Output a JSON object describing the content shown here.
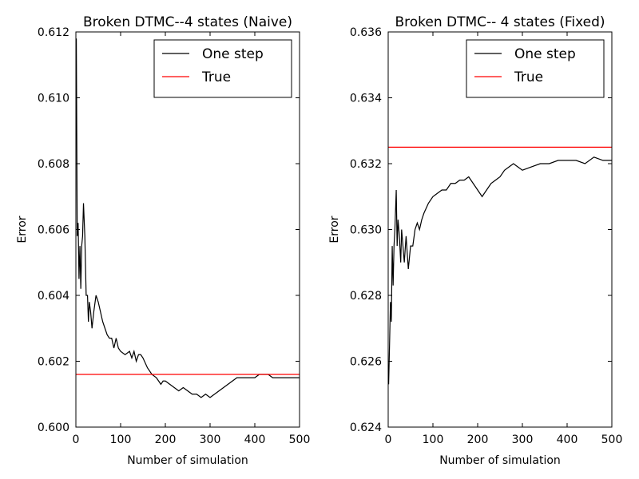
{
  "chart_data": [
    {
      "type": "line",
      "title": "Broken DTMC--4 states (Naive)",
      "xlabel": "Number of simulation",
      "ylabel": "Error",
      "xlim": [
        0,
        500
      ],
      "ylim": [
        0.6,
        0.612
      ],
      "xticks": [
        0,
        100,
        200,
        300,
        400,
        500
      ],
      "xtick_labels": [
        "0",
        "100",
        "200",
        "300",
        "400",
        "500"
      ],
      "yticks": [
        0.6,
        0.602,
        0.604,
        0.606,
        0.608,
        0.61,
        0.612
      ],
      "ytick_labels": [
        "0.600",
        "0.602",
        "0.604",
        "0.606",
        "0.608",
        "0.610",
        "0.612"
      ],
      "legend": "top-right",
      "grid": false,
      "series": [
        {
          "name": "One step",
          "color": "#000000",
          "x": [
            1,
            3,
            5,
            7,
            9,
            11,
            13,
            15,
            17,
            20,
            23,
            26,
            28,
            30,
            33,
            36,
            40,
            45,
            50,
            55,
            60,
            65,
            70,
            75,
            80,
            85,
            90,
            95,
            100,
            110,
            120,
            125,
            130,
            135,
            140,
            145,
            150,
            160,
            170,
            180,
            185,
            190,
            195,
            200,
            210,
            220,
            230,
            240,
            250,
            260,
            270,
            280,
            290,
            300,
            310,
            320,
            330,
            340,
            350,
            360,
            370,
            380,
            390,
            400,
            410,
            420,
            430,
            440,
            450,
            460,
            470,
            480,
            490,
            500
          ],
          "y": [
            0.6118,
            0.6058,
            0.6062,
            0.6045,
            0.6055,
            0.6042,
            0.6055,
            0.6058,
            0.6068,
            0.6058,
            0.604,
            0.604,
            0.6032,
            0.6038,
            0.6035,
            0.603,
            0.6035,
            0.604,
            0.6038,
            0.6035,
            0.6032,
            0.603,
            0.6028,
            0.6027,
            0.6027,
            0.6024,
            0.6027,
            0.6024,
            0.6023,
            0.6022,
            0.6023,
            0.6021,
            0.6023,
            0.602,
            0.6022,
            0.6022,
            0.6021,
            0.6018,
            0.6016,
            0.6015,
            0.6014,
            0.6013,
            0.6014,
            0.6014,
            0.6013,
            0.6012,
            0.6011,
            0.6012,
            0.6011,
            0.601,
            0.601,
            0.6009,
            0.601,
            0.6009,
            0.601,
            0.6011,
            0.6012,
            0.6013,
            0.6014,
            0.6015,
            0.6015,
            0.6015,
            0.6015,
            0.6015,
            0.6016,
            0.6016,
            0.6016,
            0.6015,
            0.6015,
            0.6015,
            0.6015,
            0.6015,
            0.6015,
            0.6015
          ]
        },
        {
          "name": "True",
          "color": "#ff0000",
          "x": [
            0,
            500
          ],
          "y": [
            0.6016,
            0.6016
          ]
        }
      ]
    },
    {
      "type": "line",
      "title": "Broken DTMC-- 4 states (Fixed)",
      "xlabel": "Number of simulation",
      "ylabel": "Error",
      "xlim": [
        0,
        500
      ],
      "ylim": [
        0.624,
        0.636
      ],
      "xticks": [
        0,
        100,
        200,
        300,
        400,
        500
      ],
      "xtick_labels": [
        "0",
        "100",
        "200",
        "300",
        "400",
        "500"
      ],
      "yticks": [
        0.624,
        0.626,
        0.628,
        0.63,
        0.632,
        0.634,
        0.636
      ],
      "ytick_labels": [
        "0.624",
        "0.626",
        "0.628",
        "0.630",
        "0.632",
        "0.634",
        "0.636"
      ],
      "legend": "top-right",
      "grid": false,
      "series": [
        {
          "name": "One step",
          "color": "#000000",
          "x": [
            1,
            3,
            5,
            7,
            9,
            11,
            13,
            15,
            18,
            20,
            22,
            25,
            28,
            30,
            33,
            36,
            40,
            45,
            50,
            55,
            60,
            65,
            70,
            75,
            80,
            90,
            100,
            110,
            120,
            130,
            140,
            150,
            160,
            170,
            180,
            190,
            200,
            210,
            220,
            230,
            240,
            250,
            260,
            270,
            280,
            290,
            300,
            320,
            340,
            360,
            380,
            400,
            420,
            440,
            460,
            480,
            500
          ],
          "y": [
            0.6253,
            0.6265,
            0.6278,
            0.6272,
            0.6295,
            0.6283,
            0.6295,
            0.63,
            0.6312,
            0.6295,
            0.6303,
            0.6298,
            0.629,
            0.63,
            0.6295,
            0.629,
            0.6298,
            0.6288,
            0.6295,
            0.6295,
            0.63,
            0.6302,
            0.63,
            0.6303,
            0.6305,
            0.6308,
            0.631,
            0.6311,
            0.6312,
            0.6312,
            0.6314,
            0.6314,
            0.6315,
            0.6315,
            0.6316,
            0.6314,
            0.6312,
            0.631,
            0.6312,
            0.6314,
            0.6315,
            0.6316,
            0.6318,
            0.6319,
            0.632,
            0.6319,
            0.6318,
            0.6319,
            0.632,
            0.632,
            0.6321,
            0.6321,
            0.6321,
            0.632,
            0.6322,
            0.6321,
            0.6321
          ]
        },
        {
          "name": "True",
          "color": "#ff0000",
          "x": [
            0,
            500
          ],
          "y": [
            0.6325,
            0.6325
          ]
        }
      ]
    }
  ]
}
